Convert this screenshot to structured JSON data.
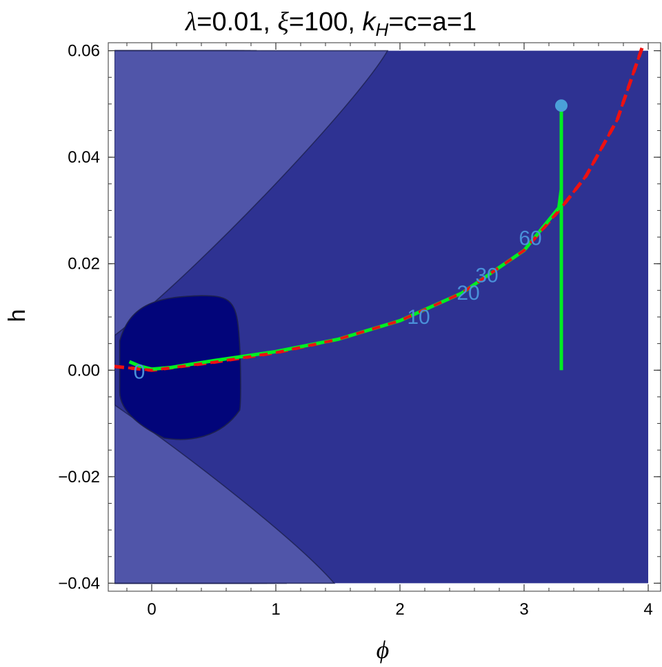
{
  "chart_data": {
    "type": "contour",
    "title": {
      "lambda_sym": "λ",
      "lambda_val": "=0.01, ",
      "xi_sym": "ξ",
      "xi_val": "=100, ",
      "k_sym": "k",
      "k_sub": "H",
      "k_val": "=c=a=1"
    },
    "xlabel": "ϕ",
    "ylabel": "h",
    "xlim": [
      -0.35,
      4.1
    ],
    "ylim": [
      -0.0415,
      0.0615
    ],
    "xticks": [
      {
        "v": 0,
        "label": "0"
      },
      {
        "v": 1,
        "label": "1"
      },
      {
        "v": 2,
        "label": "2"
      },
      {
        "v": 3,
        "label": "3"
      },
      {
        "v": 4,
        "label": "4"
      }
    ],
    "yticks": [
      {
        "v": 0.06,
        "label": "0.06"
      },
      {
        "v": 0.04,
        "label": "0.04"
      },
      {
        "v": 0.02,
        "label": "0.02"
      },
      {
        "v": 0.0,
        "label": "0.00"
      },
      {
        "v": -0.02,
        "label": "−0.02"
      },
      {
        "v": -0.04,
        "label": "−0.04"
      }
    ],
    "region": {
      "x": [
        -0.3,
        4.0
      ],
      "y": [
        -0.04,
        0.06
      ]
    },
    "colors": {
      "background": "#2e3292",
      "inner": "#02057a",
      "band1": "#5055a9",
      "band2": "#7276b9",
      "band3": "#8c90c9",
      "band4": "#a9acd9",
      "band5": "#c4c7e8",
      "band6": "#dfe7f7",
      "outer": "#cfe6fb",
      "contour_line": "#1d2150",
      "trajectory": "#00ee22",
      "valley": "#ee1111",
      "start_point": "#4aa0d8",
      "label": "#4a90d9"
    },
    "contour_bands": {
      "left_edges": [
        -0.3,
        -0.3,
        -0.3,
        -0.3,
        -0.3,
        -0.3,
        -0.3
      ],
      "top_starts_h": [
        0.0125,
        0.0115,
        0.0105,
        0.0095,
        0.0085,
        0.0075,
        0.0065
      ],
      "top_ends_x": [
        0.88,
        0.84,
        0.79,
        0.74,
        0.69,
        0.63,
        1.9
      ],
      "bottom_starts_h": [
        -0.0125,
        -0.0115,
        -0.0105,
        -0.0095,
        -0.0085,
        -0.0075,
        -0.0065
      ],
      "bottom_ends_x": [
        0.75,
        0.8,
        0.86,
        0.92,
        0.99,
        1.08,
        1.47
      ]
    },
    "inner_region": {
      "phi_min": -0.28,
      "phi_max": 0.72,
      "h_min": -0.013,
      "h_max": 0.014
    },
    "valley": [
      {
        "x": -0.3,
        "y": 0.0007
      },
      {
        "x": 0.0,
        "y": 0.0
      },
      {
        "x": 0.5,
        "y": 0.0015
      },
      {
        "x": 1.0,
        "y": 0.0033
      },
      {
        "x": 1.5,
        "y": 0.0058
      },
      {
        "x": 2.0,
        "y": 0.0093
      },
      {
        "x": 2.5,
        "y": 0.0145
      },
      {
        "x": 3.0,
        "y": 0.0225
      },
      {
        "x": 3.3,
        "y": 0.0305
      },
      {
        "x": 3.5,
        "y": 0.0365
      },
      {
        "x": 3.75,
        "y": 0.047
      },
      {
        "x": 3.95,
        "y": 0.0605
      }
    ],
    "trajectory_vertical": {
      "x": 3.3,
      "y_start": 0.0495,
      "y_end": 0.0
    },
    "trajectory_path": [
      {
        "x": 3.3,
        "y": 0.0495
      },
      {
        "x": 3.3,
        "y": 0.034
      },
      {
        "x": 3.28,
        "y": 0.0305
      },
      {
        "x": 3.0,
        "y": 0.0225
      },
      {
        "x": 2.5,
        "y": 0.0145
      },
      {
        "x": 2.0,
        "y": 0.0093
      },
      {
        "x": 1.5,
        "y": 0.0058
      },
      {
        "x": 1.0,
        "y": 0.0035
      },
      {
        "x": 0.5,
        "y": 0.0018
      },
      {
        "x": 0.15,
        "y": 0.0005
      },
      {
        "x": 0.0,
        "y": 0.0002
      },
      {
        "x": -0.1,
        "y": 0.0008
      },
      {
        "x": -0.18,
        "y": 0.0016
      }
    ],
    "start_point": {
      "x": 3.3,
      "y": 0.0497
    },
    "time_labels": [
      {
        "x": -0.1,
        "y": -0.0003,
        "label": "0"
      },
      {
        "x": 2.15,
        "y": 0.01,
        "label": "10"
      },
      {
        "x": 2.55,
        "y": 0.0145,
        "label": "20"
      },
      {
        "x": 2.7,
        "y": 0.0178,
        "label": "30"
      },
      {
        "x": 3.05,
        "y": 0.0248,
        "label": "60"
      }
    ]
  }
}
